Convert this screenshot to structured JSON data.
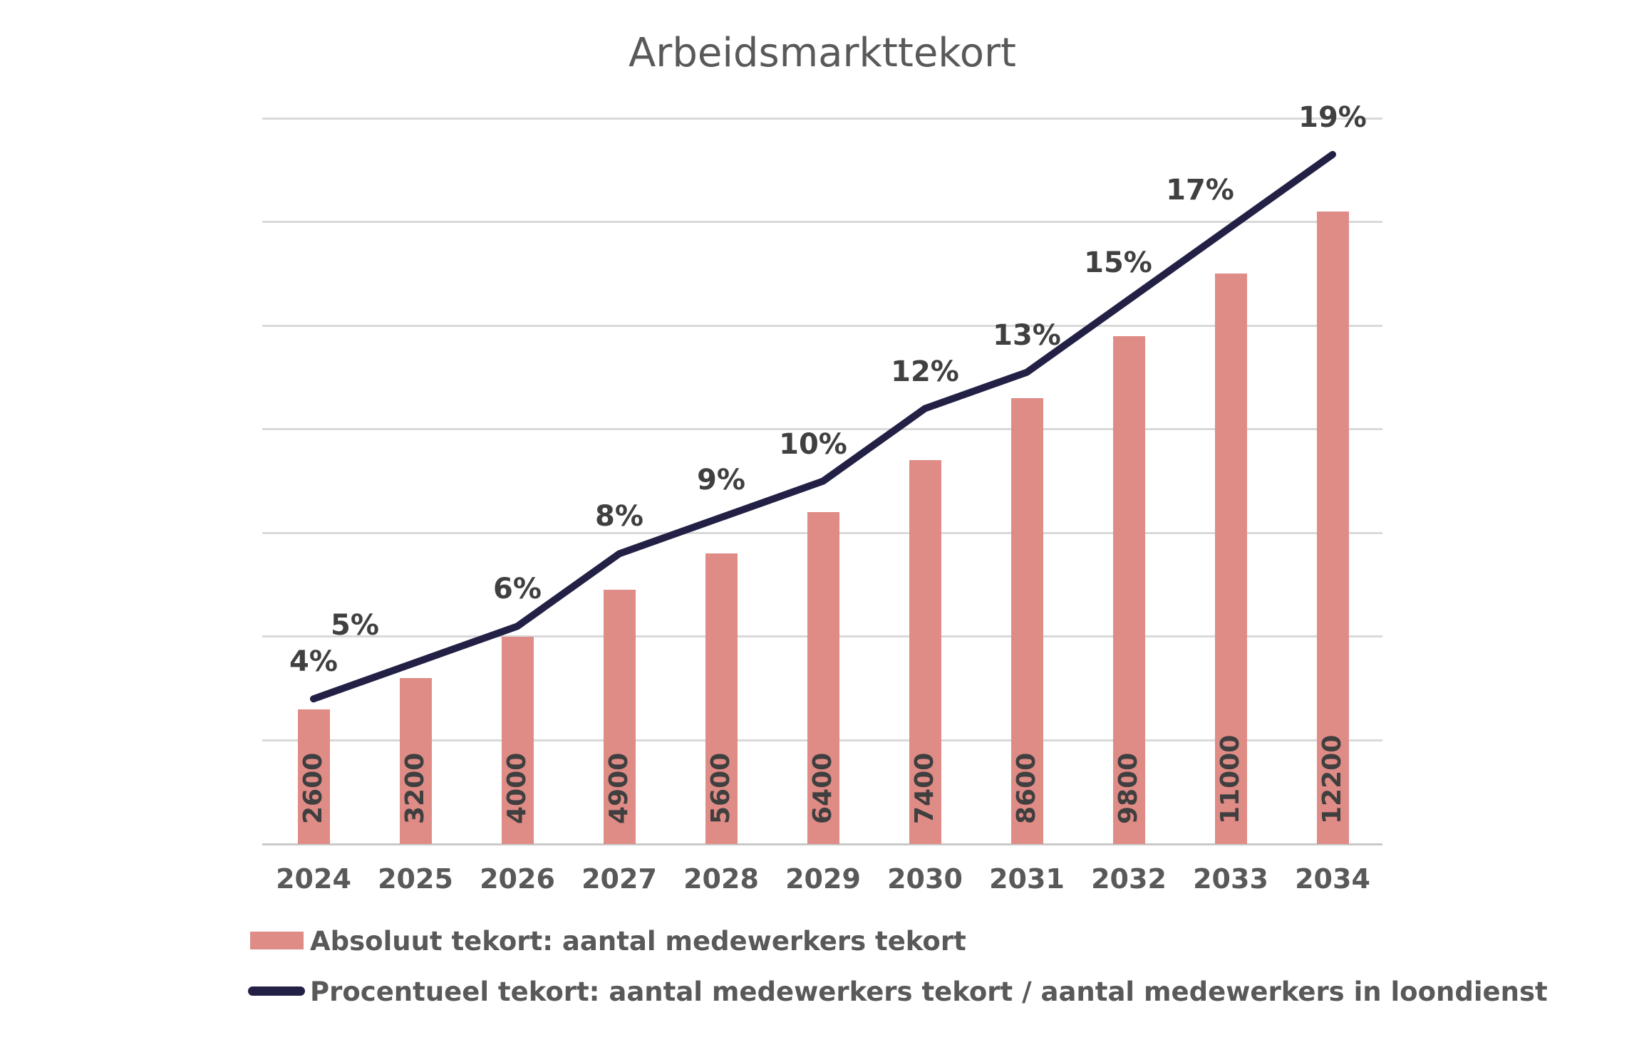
{
  "title": "Arbeidsmarkttekort",
  "chart_data": {
    "type": "bar",
    "title": "Arbeidsmarkttekort",
    "categories": [
      "2024",
      "2025",
      "2026",
      "2027",
      "2028",
      "2029",
      "2030",
      "2031",
      "2032",
      "2033",
      "2034"
    ],
    "series": [
      {
        "name": "Absoluut tekort: aantal medewerkers tekort",
        "type": "bar",
        "values": [
          2600,
          3200,
          4000,
          4900,
          5600,
          6400,
          7400,
          8600,
          9800,
          11000,
          12200
        ],
        "data_labels": [
          "2600",
          "3200",
          "4000",
          "4900",
          "5600",
          "6400",
          "7400",
          "8600",
          "9800",
          "11000",
          "12200"
        ],
        "color": "#DF8B86",
        "y_axis": {
          "min": 0,
          "max": 14000,
          "gridline_step": 2000,
          "labels_visible": false
        }
      },
      {
        "name": "Procentueel tekort: aantal medewerkers tekort / aantal medewerkers in loondienst",
        "type": "line",
        "values": [
          4,
          5,
          6,
          8,
          9,
          10,
          12,
          13,
          15,
          17,
          19
        ],
        "data_labels": [
          "4%",
          "5%",
          "6%",
          "8%",
          "9%",
          "10%",
          "12%",
          "13%",
          "15%",
          "17%",
          "19%"
        ],
        "color": "#232046",
        "y_axis": {
          "min": 0,
          "max": 20,
          "labels_visible": false
        }
      }
    ],
    "grid": true,
    "legend_position": "bottom-left"
  },
  "legend": {
    "items": [
      {
        "label": "Absoluut tekort: aantal medewerkers tekort",
        "color": "#DF8B86",
        "marker": "bar-swatch"
      },
      {
        "label": "Procentueel tekort: aantal medewerkers tekort / aantal medewerkers in loondienst",
        "color": "#232046",
        "marker": "line-swatch"
      }
    ]
  },
  "colors": {
    "bar": "#DF8B86",
    "line": "#232046",
    "gridline": "#D9D9D9",
    "axis_line": "#C9C9C9",
    "title_text": "#595959",
    "percent_label_text": "#404040",
    "bar_label_text": "#3F3F3F",
    "year_label_text": "#595959",
    "background": "#FFFFFF"
  }
}
